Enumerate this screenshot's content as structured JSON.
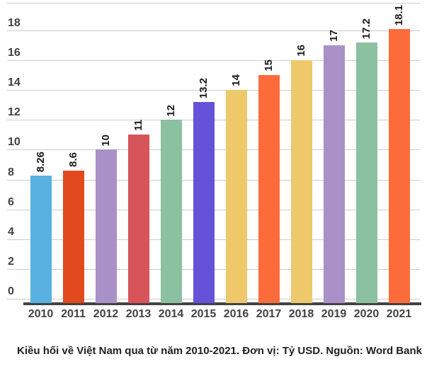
{
  "chart_data": {
    "type": "bar",
    "title": "",
    "xlabel": "",
    "ylabel": "",
    "categories": [
      "2010",
      "2011",
      "2012",
      "2013",
      "2014",
      "2015",
      "2016",
      "2017",
      "2018",
      "2019",
      "2020",
      "2021"
    ],
    "values": [
      8.26,
      8.6,
      10,
      11,
      12,
      13.2,
      14,
      15,
      16,
      17,
      17.2,
      18.1
    ],
    "value_labels": [
      "8.26",
      "8.6",
      "10",
      "11",
      "12",
      "13.2",
      "14",
      "15",
      "16",
      "17",
      "17.2",
      "18.1"
    ],
    "bar_colors": [
      "#58b1e0",
      "#e2491f",
      "#a991c7",
      "#d8545b",
      "#8bc1a1",
      "#6453d8",
      "#edc96c",
      "#fb6c3a",
      "#edc96c",
      "#a991c7",
      "#8bc1a1",
      "#fb6c3a"
    ],
    "y_ticks": [
      0,
      2,
      4,
      6,
      8,
      10,
      12,
      14,
      16,
      18
    ],
    "ylim": [
      0,
      19.6
    ],
    "grid": true,
    "legend_position": "none",
    "caption": "Kiều hối về Việt Nam qua từ năm 2010-2021. Đơn vị: Tỷ USD. Nguồn: Word Bank"
  },
  "colors": {
    "background": "#ffffff",
    "gridline": "#cccccc",
    "axis_line": "#424242",
    "tick_label": "#424242",
    "value_label": "#1a1a1a",
    "caption": "#212121"
  }
}
